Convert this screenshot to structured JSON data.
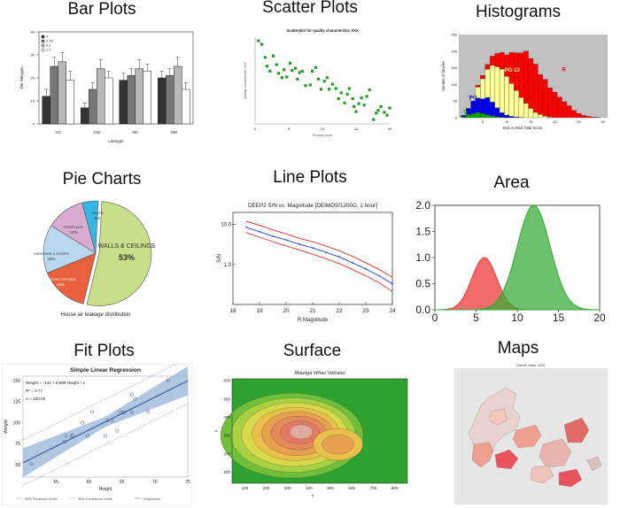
{
  "panels": {
    "bar": {
      "title": "Bar Plots",
      "chart_data": {
        "type": "bar",
        "categories": [
          "CC",
          "CW",
          "NC",
          "NW"
        ],
        "series": [
          {
            "name": "0",
            "color": "#333333",
            "values": [
              12,
              7,
              19,
              20
            ],
            "err": [
              3,
              2,
              3,
              3
            ]
          },
          {
            "name": "0.25",
            "color": "#777777",
            "values": [
              25,
              15,
              21,
              21
            ],
            "err": [
              4,
              3,
              3,
              3
            ]
          },
          {
            "name": "0.5",
            "color": "#b8b8b8",
            "values": [
              27,
              24,
              24,
              25
            ],
            "err": [
              4,
              4,
              4,
              4
            ]
          },
          {
            "name": "1.0",
            "color": "#ffffff",
            "values": [
              19,
              20,
              23,
              15
            ],
            "err": [
              4,
              3,
              3,
              3
            ]
          }
        ],
        "ylim": [
          0,
          40
        ],
        "xlabel": "Litertype",
        "ylabel": "Tile Nitrogen"
      }
    },
    "scatter": {
      "title": "Scatter Plots",
      "chart_data": {
        "type": "scatter",
        "title": "Scatterplot for quality characteristic XXX",
        "xlabel": "Process input",
        "ylabel": "Quality characteristic XXX",
        "xlim": [
          0,
          20
        ],
        "ylim": [
          0,
          12
        ],
        "x_ticks": [
          0,
          5,
          10,
          15,
          20
        ],
        "points": [
          [
            0.5,
            11.5
          ],
          [
            1,
            11
          ],
          [
            1.5,
            9.2
          ],
          [
            1.8,
            8
          ],
          [
            2.2,
            7.3
          ],
          [
            2.7,
            9.4
          ],
          [
            3.2,
            8.2
          ],
          [
            3.5,
            7
          ],
          [
            4,
            6.4
          ],
          [
            4.3,
            7.5
          ],
          [
            4.7,
            6.5
          ],
          [
            5.2,
            8.4
          ],
          [
            5.5,
            7.4
          ],
          [
            6,
            7.7
          ],
          [
            6.3,
            6.2
          ],
          [
            6.6,
            7.1
          ],
          [
            7,
            7.3
          ],
          [
            7.5,
            5.3
          ],
          [
            8.2,
            5.4
          ],
          [
            8.5,
            7.3
          ],
          [
            9,
            7.8
          ],
          [
            9.4,
            6.2
          ],
          [
            9.8,
            4.8
          ],
          [
            10.3,
            5.9
          ],
          [
            10.7,
            6.4
          ],
          [
            11,
            4.8
          ],
          [
            11.5,
            5.5
          ],
          [
            12,
            4.9
          ],
          [
            12.4,
            3.5
          ],
          [
            12.8,
            4.3
          ],
          [
            13.3,
            2.9
          ],
          [
            13.7,
            4.1
          ],
          [
            14,
            4.9
          ],
          [
            14.5,
            3.5
          ],
          [
            14.7,
            2.4
          ],
          [
            15,
            1.7
          ],
          [
            15.4,
            2.8
          ],
          [
            15.8,
            3.6
          ],
          [
            16.2,
            2.6
          ],
          [
            16.6,
            3.8
          ],
          [
            17,
            4.7
          ],
          [
            17.6,
            0.6
          ],
          [
            18,
            1.5
          ],
          [
            18.3,
            1.9
          ],
          [
            18.7,
            2.4
          ],
          [
            19.2,
            1.6
          ],
          [
            19.6,
            1.2
          ],
          [
            20,
            2.2
          ]
        ]
      }
    },
    "histogram": {
      "title": "Histograms",
      "chart_data": {
        "type": "bar",
        "stacked": true,
        "xlabel": "Kids in Mind Total Score",
        "ylabel": "Number of Movies",
        "xlim": [
          0,
          31
        ],
        "ylim": [
          0,
          250
        ],
        "x_ticks": [
          5,
          10,
          15,
          20,
          25,
          30
        ],
        "y_ticks": [
          0,
          50,
          100,
          150,
          200,
          250
        ],
        "series_labels": [
          {
            "name": "G",
            "color": "#00aa00",
            "x": 1,
            "y": 12
          },
          {
            "name": "PG",
            "color": "#0000ee",
            "x": 2.2,
            "y": 55
          },
          {
            "name": "PG-13",
            "color": "#ffff99",
            "x": 9.5,
            "y": 138
          },
          {
            "name": "R",
            "color": "#ff0000",
            "x": 21.5,
            "y": 140
          }
        ],
        "bins": [
          {
            "x": 1,
            "g": 3,
            "pg": 4,
            "pg13": 0,
            "r": 0
          },
          {
            "x": 2,
            "g": 10,
            "pg": 18,
            "pg13": 3,
            "r": 0
          },
          {
            "x": 3,
            "g": 13,
            "pg": 38,
            "pg13": 12,
            "r": 0
          },
          {
            "x": 4,
            "g": 16,
            "pg": 43,
            "pg13": 33,
            "r": 6
          },
          {
            "x": 5,
            "g": 13,
            "pg": 44,
            "pg13": 60,
            "r": 10
          },
          {
            "x": 6,
            "g": 9,
            "pg": 52,
            "pg13": 85,
            "r": 14
          },
          {
            "x": 7,
            "g": 6,
            "pg": 41,
            "pg13": 110,
            "r": 28
          },
          {
            "x": 8,
            "g": 4,
            "pg": 26,
            "pg13": 123,
            "r": 40
          },
          {
            "x": 9,
            "g": 2,
            "pg": 13,
            "pg13": 131,
            "r": 50
          },
          {
            "x": 10,
            "g": 1,
            "pg": 7,
            "pg13": 116,
            "r": 65
          },
          {
            "x": 11,
            "g": 0,
            "pg": 4,
            "pg13": 99,
            "r": 93
          },
          {
            "x": 12,
            "g": 0,
            "pg": 2,
            "pg13": 80,
            "r": 113
          },
          {
            "x": 13,
            "g": 0,
            "pg": 1,
            "pg13": 60,
            "r": 134
          },
          {
            "x": 14,
            "g": 0,
            "pg": 0,
            "pg13": 43,
            "r": 157
          },
          {
            "x": 15,
            "g": 0,
            "pg": 0,
            "pg13": 28,
            "r": 150
          },
          {
            "x": 16,
            "g": 0,
            "pg": 0,
            "pg13": 16,
            "r": 145
          },
          {
            "x": 17,
            "g": 0,
            "pg": 0,
            "pg13": 10,
            "r": 120
          },
          {
            "x": 18,
            "g": 0,
            "pg": 0,
            "pg13": 5,
            "r": 110
          },
          {
            "x": 19,
            "g": 0,
            "pg": 0,
            "pg13": 2,
            "r": 88
          },
          {
            "x": 20,
            "g": 0,
            "pg": 0,
            "pg13": 1,
            "r": 76
          },
          {
            "x": 21,
            "g": 0,
            "pg": 0,
            "pg13": 0,
            "r": 62
          },
          {
            "x": 22,
            "g": 0,
            "pg": 0,
            "pg13": 0,
            "r": 48
          },
          {
            "x": 23,
            "g": 0,
            "pg": 0,
            "pg13": 0,
            "r": 36
          },
          {
            "x": 24,
            "g": 0,
            "pg": 0,
            "pg13": 0,
            "r": 22
          },
          {
            "x": 25,
            "g": 0,
            "pg": 0,
            "pg13": 0,
            "r": 13
          },
          {
            "x": 26,
            "g": 0,
            "pg": 0,
            "pg13": 0,
            "r": 7
          },
          {
            "x": 27,
            "g": 0,
            "pg": 0,
            "pg13": 0,
            "r": 4
          },
          {
            "x": 28,
            "g": 0,
            "pg": 0,
            "pg13": 0,
            "r": 2
          },
          {
            "x": 29,
            "g": 0,
            "pg": 0,
            "pg13": 0,
            "r": 1
          }
        ]
      }
    },
    "pie": {
      "title": "Pie Charts",
      "chart_data": {
        "type": "pie",
        "caption": "House air leakage distribution",
        "slices": [
          {
            "label": "WALLS & CEILINGS",
            "pct": 53,
            "color": "#c8df89"
          },
          {
            "label": "HEATING SYSTEM",
            "pct": 15,
            "color": "#e9603c"
          },
          {
            "label": "WINDOWS & DOORS",
            "pct": 15,
            "color": "#b9d8ef"
          },
          {
            "label": "FIREPLACE",
            "pct": 12,
            "color": "#d9aad2"
          },
          {
            "label": "VENTS",
            "pct": 5,
            "color": "#36b4e4"
          }
        ]
      }
    },
    "line": {
      "title": "Line  Plots",
      "chart_data": {
        "type": "line",
        "title": "DEEP2 S/N vs. Magnitude [DEIMOS/1200G, 1 hour]",
        "xlabel": "R Magnitude",
        "ylabel": "S/N",
        "xlim": [
          18,
          24
        ],
        "ylim": [
          0.1,
          20
        ],
        "log_y": true,
        "x_ticks": [
          18,
          19,
          20,
          21,
          22,
          23,
          24
        ],
        "y_ticks": [
          {
            "v": 10,
            "label": "10.0"
          },
          {
            "v": 1,
            "label": "1.0"
          }
        ],
        "x": [
          18.5,
          19,
          19.5,
          20,
          20.5,
          21,
          21.5,
          22,
          22.5,
          23,
          23.5,
          24
        ],
        "series": [
          {
            "name": "",
            "color": "#e03030",
            "values": [
              12,
              9.5,
              7.3,
              5.8,
              4.5,
              3.7,
              2.9,
              2.2,
              1.6,
              1.1,
              0.75,
              0.48
            ]
          },
          {
            "name": "",
            "color": "#2244cc",
            "markers": true,
            "values": [
              8.5,
              6.6,
              5.1,
              4.1,
              3.2,
              2.6,
              2.0,
              1.55,
              1.1,
              0.77,
              0.52,
              0.33
            ]
          },
          {
            "name": "",
            "color": "#e03030",
            "values": [
              6.3,
              4.8,
              3.7,
              2.9,
              2.3,
              1.8,
              1.4,
              1.05,
              0.75,
              0.52,
              0.35,
              0.21
            ]
          }
        ]
      }
    },
    "area": {
      "title": "Area",
      "chart_data": {
        "type": "area",
        "xlim": [
          0,
          20
        ],
        "ylim": [
          0,
          2.0
        ],
        "x_ticks": [
          0,
          5,
          10,
          15,
          20
        ],
        "y_ticks": [
          {
            "v": 0,
            "label": "0.0"
          },
          {
            "v": 0.5,
            "label": "0.5"
          },
          {
            "v": 1.0,
            "label": "1.0"
          },
          {
            "v": 1.5,
            "label": "1.5"
          },
          {
            "v": 2.0,
            "label": "2.0"
          }
        ],
        "series": [
          {
            "name": "",
            "color": "#ee3333",
            "mean": 6,
            "sd": 1.5,
            "peak": 1.0
          },
          {
            "name": "",
            "color": "#33aa33",
            "mean": 12,
            "sd": 2.0,
            "peak": 2.0
          }
        ]
      }
    },
    "fit": {
      "title": "Fit Plots",
      "chart_data": {
        "type": "scatter",
        "title": "Simple Linear Regression",
        "xlabel": "Height",
        "ylabel": "Weight",
        "xlim": [
          50,
          75
        ],
        "ylim": [
          35,
          155
        ],
        "x_ticks": [
          55,
          60,
          65,
          70,
          75
        ],
        "y_ticks": [
          50,
          75,
          100,
          125,
          150
        ],
        "annotations": [
          "Weight = -143 + 3.899 Height + ε",
          "R² = 0.77",
          "σ = 100.05"
        ],
        "legend": [
          "95% Prediction Limits",
          "95% Confidence Limits",
          "Regression"
        ],
        "regression": {
          "intercept": -143,
          "slope": 3.899
        },
        "points": [
          [
            51.3,
            50.5
          ],
          [
            56.3,
            77
          ],
          [
            56.5,
            84
          ],
          [
            57.3,
            83
          ],
          [
            57.5,
            85
          ],
          [
            59,
            99.5
          ],
          [
            59.8,
            84
          ],
          [
            60.5,
            112.5
          ],
          [
            62.5,
            84
          ],
          [
            62.8,
            102.5
          ],
          [
            63.5,
            102.5
          ],
          [
            64.3,
            90
          ],
          [
            64.8,
            112
          ],
          [
            65.3,
            112
          ],
          [
            66.5,
            112
          ],
          [
            66.5,
            133
          ],
          [
            67,
            128
          ],
          [
            69,
            112.5
          ],
          [
            72,
            150
          ]
        ]
      }
    },
    "surface": {
      "title": "Surface",
      "chart_data": {
        "type": "heatmap",
        "title": "Maunga Whau Volcano",
        "xlabel": "x",
        "ylabel": "y",
        "x_ticks": [
          100,
          200,
          300,
          400,
          500,
          600,
          700,
          800
        ],
        "y_ticks": [
          100,
          200,
          300,
          400,
          500,
          600
        ],
        "xlim": [
          40,
          860
        ],
        "ylim": [
          40,
          610
        ]
      }
    },
    "maps": {
      "title": "Maps",
      "map_title": "Danish Atlas 1929"
    }
  }
}
